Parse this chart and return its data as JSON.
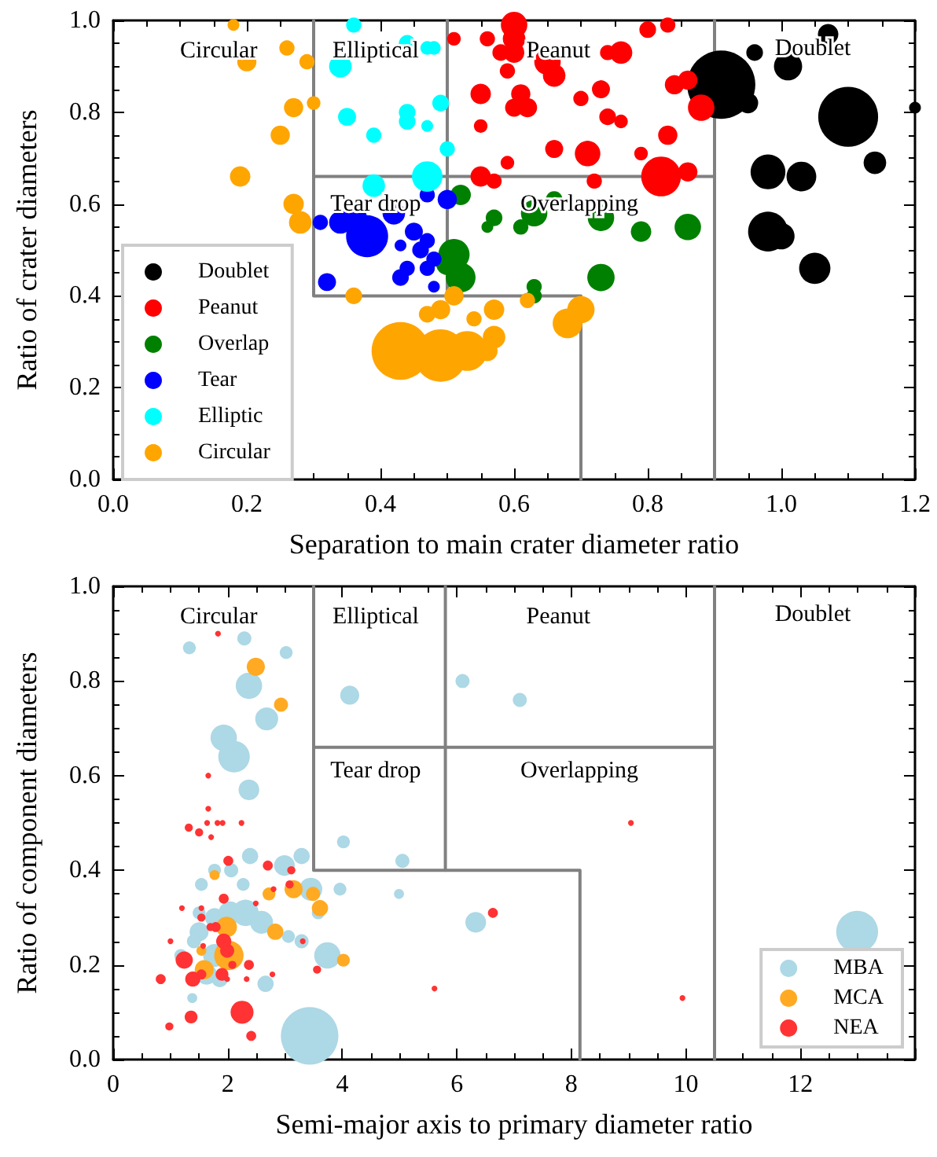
{
  "chart_data": [
    {
      "type": "bubble",
      "xlabel": "Separation to main crater diameter ratio",
      "ylabel": "Ratio of crater diameters",
      "xlim": [
        0,
        1.2
      ],
      "ylim": [
        0,
        1
      ],
      "xticks": [
        {
          "value": 0,
          "label": "0.0"
        },
        {
          "value": 0.2,
          "label": "0.2"
        },
        {
          "value": 0.4,
          "label": "0.4"
        },
        {
          "value": 0.6,
          "label": "0.6"
        },
        {
          "value": 0.8,
          "label": "0.8"
        },
        {
          "value": 1,
          "label": "1.0"
        },
        {
          "value": 1.2,
          "label": "1.2"
        }
      ],
      "yticks": [
        {
          "value": 0,
          "label": "0.0"
        },
        {
          "value": 0.2,
          "label": "0.2"
        },
        {
          "value": 0.4,
          "label": "0.4"
        },
        {
          "value": 0.6,
          "label": "0.6"
        },
        {
          "value": 0.8,
          "label": "0.8"
        },
        {
          "value": 1,
          "label": "1.0"
        }
      ],
      "grid": false,
      "legend": "bottom left",
      "marker": "circle",
      "annotations": [
        "Circular",
        "Elliptical",
        "Peanut",
        "Doublet",
        "Tear drop",
        "Overlapping"
      ],
      "series": [
        {
          "type": "line",
          "marker": "none",
          "color": "#808080",
          "x": [
            0.3,
            0.3,
            0.7,
            0.7
          ],
          "values": [
            1,
            0.4,
            0.4,
            0
          ]
        },
        {
          "type": "line",
          "marker": "none",
          "color": "#808080",
          "x": [
            0.5,
            0.5
          ],
          "values": [
            1,
            0.4
          ]
        },
        {
          "type": "line",
          "marker": "none",
          "color": "#808080",
          "x": [
            0.3,
            0.9
          ],
          "values": [
            0.66,
            0.66
          ]
        },
        {
          "type": "line",
          "marker": "none",
          "color": "#808080",
          "x": [
            0.9,
            0.9
          ],
          "values": [
            0,
            1
          ]
        },
        {
          "name": "Doublet",
          "color": "#000000",
          "x": [
            0.91,
            0.96,
            0.95,
            1.01,
            1.07,
            1.1,
            1.14,
            1.2,
            0.98,
            1.03,
            0.98,
            1.0,
            1.05
          ],
          "values": [
            0.86,
            0.93,
            0.82,
            0.9,
            0.97,
            0.79,
            0.69,
            0.81,
            0.67,
            0.66,
            0.54,
            0.53,
            0.46
          ],
          "sizes": [
            1,
            0.06,
            0.09,
            0.17,
            0.09,
            0.77,
            0.11,
            0.03,
            0.26,
            0.19,
            0.34,
            0.15,
            0.21
          ]
        },
        {
          "name": "Peanut",
          "color": "#ff0000",
          "x": [
            0.51,
            0.56,
            0.58,
            0.59,
            0.6,
            0.55,
            0.55,
            0.59,
            0.55,
            0.57,
            0.6,
            0.6,
            0.65,
            0.66,
            0.61,
            0.62,
            0.6,
            0.7,
            0.73,
            0.74,
            0.76,
            0.8,
            0.83,
            0.74,
            0.76,
            0.66,
            0.71,
            0.72,
            0.79,
            0.83,
            0.82,
            0.86,
            0.84,
            0.86,
            0.88
          ],
          "values": [
            0.96,
            0.96,
            0.93,
            0.89,
            0.96,
            0.84,
            0.77,
            0.69,
            0.66,
            0.65,
            0.99,
            0.93,
            0.91,
            0.88,
            0.84,
            0.81,
            0.81,
            0.83,
            0.85,
            0.79,
            0.78,
            0.98,
            0.99,
            0.93,
            0.93,
            0.72,
            0.71,
            0.65,
            0.71,
            0.75,
            0.66,
            0.67,
            0.86,
            0.87,
            0.81
          ],
          "sizes": [
            0.04,
            0.05,
            0.06,
            0.05,
            0.11,
            0.09,
            0.04,
            0.04,
            0.09,
            0.05,
            0.15,
            0.09,
            0.15,
            0.11,
            0.08,
            0.08,
            0.07,
            0.05,
            0.07,
            0.06,
            0.04,
            0.06,
            0.05,
            0.05,
            0.11,
            0.07,
            0.14,
            0.05,
            0.04,
            0.08,
            0.34,
            0.08,
            0.08,
            0.08,
            0.15
          ]
        },
        {
          "name": "Overlap",
          "color": "#008000",
          "x": [
            0.52,
            0.56,
            0.57,
            0.51,
            0.52,
            0.5,
            0.61,
            0.63,
            0.66,
            0.73,
            0.79,
            0.86,
            0.73,
            0.63,
            0.63
          ],
          "values": [
            0.62,
            0.55,
            0.57,
            0.49,
            0.44,
            0.47,
            0.55,
            0.58,
            0.61,
            0.57,
            0.54,
            0.55,
            0.44,
            0.42,
            0.4
          ],
          "sizes": [
            0.09,
            0.03,
            0.06,
            0.21,
            0.19,
            0.11,
            0.05,
            0.15,
            0.06,
            0.15,
            0.09,
            0.15,
            0.16,
            0.05,
            0.05
          ]
        },
        {
          "name": "Tear",
          "color": "#0000ff",
          "x": [
            0.31,
            0.34,
            0.36,
            0.38,
            0.42,
            0.43,
            0.45,
            0.46,
            0.47,
            0.47,
            0.5,
            0.48,
            0.47,
            0.44,
            0.43,
            0.32,
            0.48
          ],
          "values": [
            0.56,
            0.56,
            0.57,
            0.53,
            0.58,
            0.51,
            0.54,
            0.5,
            0.52,
            0.62,
            0.61,
            0.48,
            0.46,
            0.46,
            0.44,
            0.43,
            0.42
          ],
          "sizes": [
            0.05,
            0.11,
            0.15,
            0.38,
            0.11,
            0.03,
            0.07,
            0.06,
            0.05,
            0.05,
            0.08,
            0.05,
            0.05,
            0.05,
            0.06,
            0.07,
            0.03
          ]
        },
        {
          "name": "Elliptic",
          "color": "#00ffff",
          "x": [
            0.36,
            0.34,
            0.44,
            0.47,
            0.48,
            0.35,
            0.39,
            0.44,
            0.44,
            0.47,
            0.49,
            0.5,
            0.47,
            0.39
          ],
          "values": [
            0.99,
            0.9,
            0.95,
            0.94,
            0.94,
            0.79,
            0.75,
            0.8,
            0.78,
            0.77,
            0.82,
            0.72,
            0.66,
            0.64
          ],
          "sizes": [
            0.05,
            0.11,
            0.06,
            0.04,
            0.04,
            0.07,
            0.05,
            0.06,
            0.06,
            0.03,
            0.06,
            0.05,
            0.2,
            0.11
          ]
        },
        {
          "name": "Circular",
          "color": "#ffa500",
          "x": [
            0.18,
            0.2,
            0.26,
            0.29,
            0.27,
            0.3,
            0.25,
            0.19,
            0.27,
            0.28,
            0.36,
            0.47,
            0.49,
            0.51,
            0.54,
            0.57,
            0.43,
            0.49,
            0.53,
            0.57,
            0.56,
            0.62,
            0.68,
            0.7
          ],
          "values": [
            0.99,
            0.91,
            0.94,
            0.91,
            0.81,
            0.82,
            0.75,
            0.66,
            0.6,
            0.56,
            0.4,
            0.36,
            0.37,
            0.4,
            0.35,
            0.37,
            0.28,
            0.27,
            0.28,
            0.31,
            0.28,
            0.39,
            0.34,
            0.37
          ],
          "sizes": [
            0.03,
            0.08,
            0.05,
            0.05,
            0.08,
            0.04,
            0.08,
            0.09,
            0.09,
            0.11,
            0.06,
            0.06,
            0.08,
            0.08,
            0.05,
            0.09,
            0.72,
            0.59,
            0.34,
            0.11,
            0.09,
            0.05,
            0.19,
            0.16
          ]
        }
      ]
    },
    {
      "type": "bubble",
      "xlabel": "Semi-major axis to primary diameter ratio",
      "ylabel": "Ratio of component diameters",
      "xlim": [
        0,
        14
      ],
      "ylim": [
        0,
        1
      ],
      "xticks": [
        0,
        2,
        4,
        6,
        8,
        10,
        12
      ],
      "yticks": [
        {
          "value": 0,
          "label": "0.0"
        },
        {
          "value": 0.2,
          "label": "0.2"
        },
        {
          "value": 0.4,
          "label": "0.4"
        },
        {
          "value": 0.6,
          "label": "0.6"
        },
        {
          "value": 0.8,
          "label": "0.8"
        },
        {
          "value": 1,
          "label": "1.0"
        }
      ],
      "grid": false,
      "legend": "bottom right",
      "marker": "circle",
      "annotations": [
        "Circular",
        "Elliptical",
        "Peanut",
        "Doublet",
        "Tear drop",
        "Overlapping"
      ],
      "series": [
        {
          "type": "line",
          "marker": "none",
          "color": "#808080",
          "x": [
            3.5,
            3.5,
            8.15,
            8.15
          ],
          "values": [
            1,
            0.4,
            0.4,
            0
          ]
        },
        {
          "type": "line",
          "marker": "none",
          "color": "#808080",
          "x": [
            5.8,
            5.8
          ],
          "values": [
            1,
            0.4
          ]
        },
        {
          "type": "line",
          "marker": "none",
          "color": "#808080",
          "x": [
            3.5,
            10.5
          ],
          "values": [
            0.66,
            0.66
          ]
        },
        {
          "type": "line",
          "marker": "none",
          "color": "#808080",
          "x": [
            10.5,
            10.5
          ],
          "values": [
            0,
            1
          ]
        },
        {
          "name": "MBA",
          "color": "#add8e6",
          "x": [
            1.33,
            2.29,
            3.02,
            2.37,
            2.68,
            1.93,
            2.11,
            2.37,
            2.39,
            2.99,
            3.29,
            1.77,
            2.06,
            2.27,
            1.54,
            3.45,
            3.96,
            1.5,
            1.77,
            2.04,
            2.31,
            2.59,
            1.5,
            1.41,
            1.18,
            1.77,
            1.63,
            1.86,
            1.38,
            2.66,
            3.06,
            3.29,
            3.74,
            3.58,
            3.43,
            4.02,
            4.13,
            5.05,
            4.99,
            6.1,
            6.33,
            7.1,
            12.99
          ],
          "values": [
            0.87,
            0.89,
            0.86,
            0.79,
            0.72,
            0.68,
            0.64,
            0.57,
            0.43,
            0.41,
            0.43,
            0.4,
            0.4,
            0.37,
            0.37,
            0.36,
            0.36,
            0.31,
            0.3,
            0.31,
            0.31,
            0.29,
            0.27,
            0.25,
            0.22,
            0.22,
            0.18,
            0.17,
            0.13,
            0.16,
            0.26,
            0.25,
            0.22,
            0.31,
            0.05,
            0.46,
            0.77,
            0.42,
            0.35,
            0.8,
            0.29,
            0.76,
            0.27
          ],
          "sizes": [
            0.05,
            0.06,
            0.05,
            0.21,
            0.16,
            0.21,
            0.3,
            0.13,
            0.08,
            0.13,
            0.08,
            0.05,
            0.06,
            0.05,
            0.05,
            0.16,
            0.05,
            0.05,
            0.11,
            0.16,
            0.21,
            0.16,
            0.11,
            0.06,
            0.05,
            0.16,
            0.13,
            0.08,
            0.03,
            0.08,
            0.05,
            0.06,
            0.21,
            0.05,
            1,
            0.05,
            0.11,
            0.06,
            0.03,
            0.06,
            0.13,
            0.06,
            0.53
          ]
        },
        {
          "name": "MCA",
          "color": "#ffaa22",
          "x": [
            2.49,
            2.93,
            1.77,
            2.72,
            3.15,
            3.49,
            3.61,
            2.83,
            1.98,
            2.02,
            1.59,
            4.02,
            1.54
          ],
          "values": [
            0.83,
            0.75,
            0.39,
            0.35,
            0.36,
            0.35,
            0.32,
            0.27,
            0.28,
            0.22,
            0.19,
            0.21,
            0.23
          ],
          "sizes": [
            0.1,
            0.06,
            0.03,
            0.05,
            0.1,
            0.06,
            0.08,
            0.08,
            0.13,
            0.26,
            0.11,
            0.05,
            0.03
          ]
        },
        {
          "name": "NEA",
          "color": "#ff3333",
          "x": [
            1.83,
            1.32,
            1.5,
            1.71,
            1.82,
            1.91,
            1.66,
            1.66,
            1.64,
            2.24,
            2.01,
            2.7,
            3.11,
            3.08,
            2.8,
            2.49,
            1.93,
            1.2,
            1.54,
            1.54,
            1.79,
            1.7,
            1.0,
            3.31,
            1.93,
            1.99,
            1.24,
            1.39,
            1.54,
            1.9,
            2.37,
            2.08,
            2.78,
            3.56,
            0.83,
            2.33,
            1.99,
            2.25,
            1.36,
            0.98,
            2.41,
            5.61,
            6.63,
            1.57,
            9.04,
            9.94
          ],
          "values": [
            0.9,
            0.49,
            0.48,
            0.47,
            0.5,
            0.5,
            0.6,
            0.53,
            0.5,
            0.5,
            0.42,
            0.41,
            0.4,
            0.37,
            0.36,
            0.33,
            0.34,
            0.32,
            0.32,
            0.3,
            0.28,
            0.28,
            0.25,
            0.25,
            0.25,
            0.23,
            0.21,
            0.17,
            0.18,
            0.18,
            0.2,
            0.2,
            0.18,
            0.19,
            0.17,
            0.17,
            0.17,
            0.1,
            0.09,
            0.07,
            0.05,
            0.15,
            0.31,
            0.24,
            0.5,
            0.13
          ],
          "sizes": [
            0.01,
            0.02,
            0.02,
            0.01,
            0.01,
            0.01,
            0.01,
            0.01,
            0.01,
            0.01,
            0.03,
            0.03,
            0.02,
            0.02,
            0.01,
            0.01,
            0.03,
            0.01,
            0.01,
            0.02,
            0.03,
            0.02,
            0.01,
            0.01,
            0.07,
            0.06,
            0.09,
            0.07,
            0.03,
            0.05,
            0.03,
            0.02,
            0.01,
            0.02,
            0.03,
            0.01,
            0.01,
            0.16,
            0.05,
            0.02,
            0.03,
            0.01,
            0.03,
            0.01,
            0.01,
            0.01
          ]
        }
      ]
    }
  ]
}
